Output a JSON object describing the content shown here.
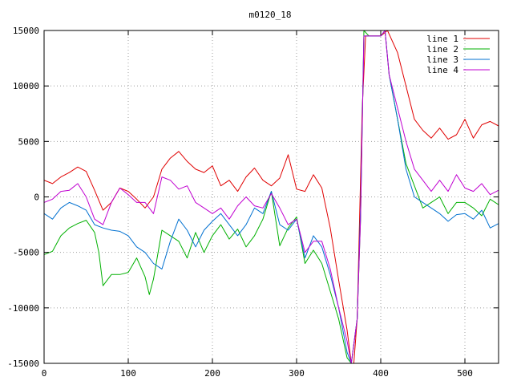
{
  "chart_data": {
    "type": "line",
    "title": "m0120_18",
    "xlabel": "",
    "ylabel": "",
    "xlim": [
      0,
      540
    ],
    "ylim": [
      -15000,
      15000
    ],
    "x_ticks": [
      0,
      100,
      200,
      300,
      400,
      500
    ],
    "y_ticks": [
      -15000,
      -10000,
      -5000,
      0,
      5000,
      10000,
      15000
    ],
    "grid": true,
    "legend_position": "top-right",
    "colors": {
      "line 1": "#e00000",
      "line 2": "#00b000",
      "line 3": "#0070d0",
      "line 4": "#c000d0"
    },
    "series": [
      {
        "name": "line 1",
        "points": [
          [
            0,
            1500
          ],
          [
            10,
            1200
          ],
          [
            20,
            1800
          ],
          [
            30,
            2200
          ],
          [
            40,
            2700
          ],
          [
            50,
            2300
          ],
          [
            60,
            600
          ],
          [
            70,
            -1200
          ],
          [
            80,
            -500
          ],
          [
            90,
            800
          ],
          [
            100,
            500
          ],
          [
            110,
            -200
          ],
          [
            120,
            -1000
          ],
          [
            130,
            0
          ],
          [
            140,
            2500
          ],
          [
            150,
            3500
          ],
          [
            160,
            4100
          ],
          [
            170,
            3200
          ],
          [
            180,
            2500
          ],
          [
            190,
            2200
          ],
          [
            200,
            2800
          ],
          [
            210,
            1000
          ],
          [
            220,
            1500
          ],
          [
            230,
            500
          ],
          [
            240,
            1800
          ],
          [
            250,
            2600
          ],
          [
            260,
            1500
          ],
          [
            270,
            1000
          ],
          [
            280,
            1700
          ],
          [
            290,
            3800
          ],
          [
            300,
            700
          ],
          [
            310,
            500
          ],
          [
            320,
            2000
          ],
          [
            330,
            800
          ],
          [
            340,
            -2800
          ],
          [
            350,
            -7500
          ],
          [
            360,
            -12000
          ],
          [
            365,
            -15000
          ],
          [
            368,
            -15000
          ],
          [
            372,
            -11000
          ],
          [
            378,
            8000
          ],
          [
            382,
            14500
          ],
          [
            400,
            14500
          ],
          [
            408,
            15000
          ],
          [
            420,
            13000
          ],
          [
            430,
            10000
          ],
          [
            440,
            7000
          ],
          [
            450,
            6000
          ],
          [
            460,
            5300
          ],
          [
            470,
            6200
          ],
          [
            480,
            5200
          ],
          [
            490,
            5600
          ],
          [
            500,
            7000
          ],
          [
            510,
            5300
          ],
          [
            520,
            6500
          ],
          [
            530,
            6800
          ],
          [
            540,
            6400
          ]
        ]
      },
      {
        "name": "line 2",
        "points": [
          [
            0,
            -5200
          ],
          [
            10,
            -4900
          ],
          [
            20,
            -3500
          ],
          [
            30,
            -2800
          ],
          [
            40,
            -2400
          ],
          [
            50,
            -2100
          ],
          [
            60,
            -3200
          ],
          [
            65,
            -5000
          ],
          [
            70,
            -8000
          ],
          [
            80,
            -7000
          ],
          [
            90,
            -7000
          ],
          [
            100,
            -6800
          ],
          [
            110,
            -5500
          ],
          [
            120,
            -7200
          ],
          [
            125,
            -8800
          ],
          [
            130,
            -7400
          ],
          [
            140,
            -3000
          ],
          [
            150,
            -3500
          ],
          [
            160,
            -4000
          ],
          [
            170,
            -5500
          ],
          [
            180,
            -3200
          ],
          [
            190,
            -5000
          ],
          [
            200,
            -3500
          ],
          [
            210,
            -2500
          ],
          [
            220,
            -3800
          ],
          [
            230,
            -2900
          ],
          [
            240,
            -4500
          ],
          [
            250,
            -3500
          ],
          [
            260,
            -2000
          ],
          [
            270,
            500
          ],
          [
            280,
            -4400
          ],
          [
            290,
            -2800
          ],
          [
            300,
            -1800
          ],
          [
            310,
            -6000
          ],
          [
            320,
            -4800
          ],
          [
            330,
            -6000
          ],
          [
            340,
            -8500
          ],
          [
            350,
            -11000
          ],
          [
            360,
            -14500
          ],
          [
            365,
            -15000
          ],
          [
            372,
            -11000
          ],
          [
            376,
            -2000
          ],
          [
            380,
            15000
          ],
          [
            386,
            14500
          ],
          [
            400,
            14500
          ],
          [
            405,
            15000
          ],
          [
            410,
            11000
          ],
          [
            420,
            7000
          ],
          [
            430,
            3000
          ],
          [
            440,
            1000
          ],
          [
            450,
            -1000
          ],
          [
            460,
            -500
          ],
          [
            470,
            0
          ],
          [
            480,
            -1500
          ],
          [
            490,
            -500
          ],
          [
            500,
            -500
          ],
          [
            510,
            -1000
          ],
          [
            520,
            -1700
          ],
          [
            530,
            -200
          ],
          [
            540,
            -700
          ]
        ]
      },
      {
        "name": "line 3",
        "points": [
          [
            0,
            -1500
          ],
          [
            10,
            -2000
          ],
          [
            20,
            -1000
          ],
          [
            30,
            -500
          ],
          [
            40,
            -800
          ],
          [
            50,
            -1200
          ],
          [
            60,
            -2500
          ],
          [
            70,
            -2800
          ],
          [
            80,
            -3000
          ],
          [
            90,
            -3100
          ],
          [
            100,
            -3500
          ],
          [
            110,
            -4500
          ],
          [
            120,
            -5000
          ],
          [
            130,
            -6000
          ],
          [
            140,
            -6500
          ],
          [
            150,
            -4000
          ],
          [
            160,
            -2000
          ],
          [
            170,
            -3000
          ],
          [
            180,
            -4500
          ],
          [
            190,
            -3000
          ],
          [
            200,
            -2200
          ],
          [
            210,
            -1500
          ],
          [
            220,
            -2500
          ],
          [
            230,
            -3500
          ],
          [
            240,
            -2500
          ],
          [
            250,
            -1000
          ],
          [
            260,
            -1500
          ],
          [
            270,
            500
          ],
          [
            280,
            -2500
          ],
          [
            290,
            -3000
          ],
          [
            300,
            -2000
          ],
          [
            310,
            -5500
          ],
          [
            320,
            -3500
          ],
          [
            330,
            -4500
          ],
          [
            340,
            -7000
          ],
          [
            350,
            -10000
          ],
          [
            360,
            -14000
          ],
          [
            365,
            -15000
          ],
          [
            372,
            -11000
          ],
          [
            376,
            -1000
          ],
          [
            380,
            14500
          ],
          [
            386,
            14500
          ],
          [
            400,
            14500
          ],
          [
            405,
            15000
          ],
          [
            410,
            11000
          ],
          [
            420,
            7000
          ],
          [
            430,
            2500
          ],
          [
            440,
            0
          ],
          [
            450,
            -500
          ],
          [
            460,
            -1000
          ],
          [
            470,
            -1500
          ],
          [
            480,
            -2200
          ],
          [
            490,
            -1600
          ],
          [
            500,
            -1500
          ],
          [
            510,
            -2000
          ],
          [
            520,
            -1200
          ],
          [
            530,
            -2800
          ],
          [
            540,
            -2400
          ]
        ]
      },
      {
        "name": "line 4",
        "points": [
          [
            0,
            -500
          ],
          [
            10,
            -200
          ],
          [
            20,
            500
          ],
          [
            30,
            600
          ],
          [
            40,
            1200
          ],
          [
            50,
            0
          ],
          [
            60,
            -2000
          ],
          [
            70,
            -2500
          ],
          [
            80,
            -500
          ],
          [
            90,
            800
          ],
          [
            100,
            200
          ],
          [
            110,
            -500
          ],
          [
            120,
            -500
          ],
          [
            130,
            -1500
          ],
          [
            140,
            1800
          ],
          [
            150,
            1500
          ],
          [
            160,
            700
          ],
          [
            170,
            1000
          ],
          [
            180,
            -500
          ],
          [
            190,
            -1000
          ],
          [
            200,
            -1500
          ],
          [
            210,
            -1000
          ],
          [
            220,
            -2000
          ],
          [
            230,
            -800
          ],
          [
            240,
            0
          ],
          [
            250,
            -800
          ],
          [
            260,
            -1000
          ],
          [
            270,
            300
          ],
          [
            280,
            -1000
          ],
          [
            290,
            -2500
          ],
          [
            300,
            -2000
          ],
          [
            310,
            -5000
          ],
          [
            320,
            -4000
          ],
          [
            330,
            -4000
          ],
          [
            340,
            -6500
          ],
          [
            350,
            -10000
          ],
          [
            360,
            -13000
          ],
          [
            365,
            -15000
          ],
          [
            372,
            -11000
          ],
          [
            376,
            -2000
          ],
          [
            380,
            14500
          ],
          [
            386,
            14500
          ],
          [
            400,
            14500
          ],
          [
            405,
            15000
          ],
          [
            410,
            11000
          ],
          [
            420,
            8000
          ],
          [
            430,
            5000
          ],
          [
            440,
            2500
          ],
          [
            450,
            1500
          ],
          [
            460,
            500
          ],
          [
            470,
            1500
          ],
          [
            480,
            500
          ],
          [
            490,
            2000
          ],
          [
            500,
            800
          ],
          [
            510,
            500
          ],
          [
            520,
            1200
          ],
          [
            530,
            200
          ],
          [
            540,
            600
          ]
        ]
      }
    ]
  }
}
